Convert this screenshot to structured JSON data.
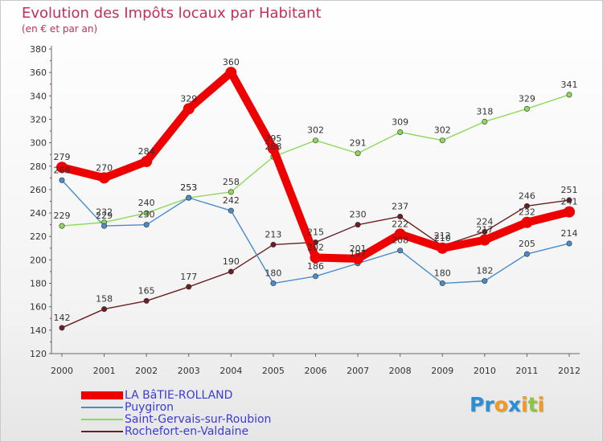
{
  "header": {
    "title": "Evolution des Impôts locaux par Habitant",
    "subtitle": "(en € et par an)"
  },
  "logo": {
    "text": "Proxiti",
    "letters": [
      {
        "ch": "P",
        "color": "#2c8fd6"
      },
      {
        "ch": "r",
        "color": "#2c8fd6"
      },
      {
        "ch": "o",
        "color": "#f39a1e"
      },
      {
        "ch": "x",
        "color": "#2c8fd6"
      },
      {
        "ch": "i",
        "color": "#f39a1e"
      },
      {
        "ch": "t",
        "color": "#8cc63f"
      },
      {
        "ch": "i",
        "color": "#f39a1e"
      }
    ]
  },
  "chart_data": {
    "type": "line",
    "title": "Evolution des Impôts locaux par Habitant",
    "subtitle": "(en € et par an)",
    "xlabel": "",
    "ylabel": "",
    "grid": false,
    "legend_position": "bottom-left",
    "ylim": [
      120,
      380
    ],
    "yticks": [
      120,
      140,
      160,
      180,
      200,
      220,
      240,
      260,
      280,
      300,
      320,
      340,
      360,
      380
    ],
    "categories": [
      "2000",
      "2001",
      "2002",
      "2003",
      "2004",
      "2005",
      "2006",
      "2007",
      "2008",
      "2009",
      "2010",
      "2011",
      "2012"
    ],
    "series": [
      {
        "name": "Rochefort-en-Valdaine",
        "color": "#6b1f22",
        "values": [
          142,
          158,
          165,
          177,
          190,
          213,
          215,
          230,
          237,
          212,
          224,
          246,
          251
        ]
      },
      {
        "name": "Saint-Gervais-sur-Roubion",
        "color": "#8ed85a",
        "values": [
          229,
          232,
          240,
          253,
          258,
          288,
          302,
          291,
          309,
          302,
          318,
          329,
          341
        ]
      },
      {
        "name": "Puygiron",
        "color": "#4a8cc8",
        "values": [
          268,
          229,
          230,
          253,
          242,
          180,
          186,
          197,
          208,
          180,
          182,
          205,
          214
        ]
      },
      {
        "name": "LA BâTIE-ROLLAND",
        "color": "#ee0000",
        "values": [
          279,
          270,
          284,
          329,
          360,
          295,
          202,
          201,
          222,
          210,
          217,
          232,
          241
        ]
      }
    ]
  },
  "legend": [
    {
      "label": "LA BâTIE-ROLLAND",
      "color": "#ee0000"
    },
    {
      "label": "Puygiron",
      "color": "#4a8cc8"
    },
    {
      "label": "Saint-Gervais-sur-Roubion",
      "color": "#8ed85a"
    },
    {
      "label": "Rochefort-en-Valdaine",
      "color": "#6b1f22"
    }
  ]
}
